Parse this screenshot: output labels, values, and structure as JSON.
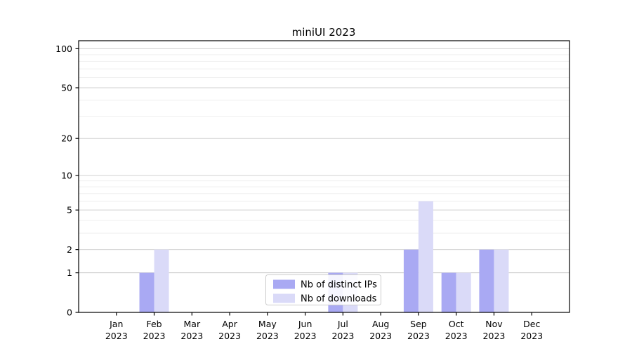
{
  "title": "miniUI 2023",
  "chart_data": {
    "type": "bar",
    "title": "miniUI 2023",
    "categories": [
      "Jan 2023",
      "Feb 2023",
      "Mar 2023",
      "Apr 2023",
      "May 2023",
      "Jun 2023",
      "Jul 2023",
      "Aug 2023",
      "Sep 2023",
      "Oct 2023",
      "Nov 2023",
      "Dec 2023"
    ],
    "x_tick_months": [
      "Jan",
      "Feb",
      "Mar",
      "Apr",
      "May",
      "Jun",
      "Jul",
      "Aug",
      "Sep",
      "Oct",
      "Nov",
      "Dec"
    ],
    "x_tick_year": "2023",
    "series": [
      {
        "name": "Nb of distinct IPs",
        "color": "#a9a9f3",
        "values": [
          0,
          1,
          0,
          0,
          0,
          0,
          1,
          0,
          2,
          1,
          2,
          0
        ]
      },
      {
        "name": "Nb of downloads",
        "color": "#dadaf8",
        "values": [
          0,
          2,
          0,
          0,
          0,
          0,
          1,
          0,
          6,
          1,
          2,
          0
        ]
      }
    ],
    "yscale": "log1p",
    "ylim": [
      0,
      115
    ],
    "y_major_ticks": [
      0,
      1,
      2,
      5,
      10,
      20,
      50,
      100
    ],
    "y_minor_gridlines": [
      3,
      4,
      6,
      7,
      8,
      9,
      30,
      40,
      60,
      70,
      80,
      90
    ],
    "grid": true,
    "legend": {
      "position": "lower center"
    }
  },
  "colors": {
    "bar_distinct_ips": "#a9a9f3",
    "bar_downloads": "#dadaf8",
    "grid_major": "#d0d0d0",
    "grid_minor": "#efefef",
    "legend_border": "#cccccc",
    "axis": "#000000"
  }
}
